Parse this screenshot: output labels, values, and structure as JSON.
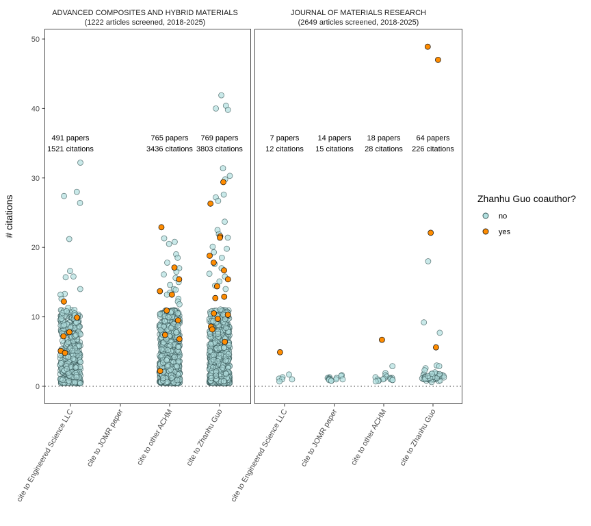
{
  "chart_data": {
    "type": "scatter",
    "subtype": "jitter-strip",
    "ylabel": "# citations",
    "xlabel": "",
    "ylim": [
      -2.5,
      51
    ],
    "yticks": [
      0,
      10,
      20,
      30,
      40,
      50
    ],
    "reference_line": {
      "y": 0,
      "style": "dotted"
    },
    "categories": [
      "cite to Engineered Science LLC",
      "cite to JOMR paper",
      "cite to other ACHM",
      "cite to Zhanhu Guo"
    ],
    "legend": {
      "title": "Zhanhu Guo coauthor?",
      "position": "right",
      "entries": [
        {
          "label": "no",
          "color": "#b2dfdf"
        },
        {
          "label": "yes",
          "color": "#ff8c00"
        }
      ]
    },
    "panels": [
      {
        "title": "ADVANCED COMPOSITES AND HYBRID MATERIALS",
        "subtitle": "(1222 articles screened, 2018-2025)",
        "annotations": [
          {
            "category": "cite to Engineered Science LLC",
            "papers": "491 papers",
            "citations": "1521 citations"
          },
          {
            "category": "cite to JOMR paper",
            "papers": "",
            "citations": ""
          },
          {
            "category": "cite to other ACHM",
            "papers": "765 papers",
            "citations": "3436 citations"
          },
          {
            "category": "cite to Zhanhu Guo",
            "papers": "769 papers",
            "citations": "3803 citations"
          }
        ],
        "groups": [
          {
            "category": "cite to Engineered Science LLC",
            "n": 491,
            "total": 1521,
            "outliers_no": [
              32.2,
              28,
              27.4,
              26.4,
              21.2,
              16.6,
              15.8,
              15.7,
              14,
              13.3,
              13.2,
              12.6,
              11.3,
              11,
              10.8,
              10.5,
              10.2,
              9.7,
              9.2,
              8.8
            ],
            "outliers_yes": [
              12.2,
              9.9,
              7.8,
              7.2,
              5.1,
              4.8
            ]
          },
          {
            "category": "cite to JOMR paper",
            "n": 0,
            "total": 0,
            "outliers_no": [],
            "outliers_yes": []
          },
          {
            "category": "cite to other ACHM",
            "n": 765,
            "total": 3436,
            "outliers_no": [
              21.3,
              20.8,
              20.5,
              19,
              18.5,
              17.8,
              17,
              16.5,
              16.1,
              15.6,
              15,
              14.6,
              14,
              13.9,
              13.5,
              13.2,
              12.6,
              12.2,
              11.8
            ],
            "outliers_yes": [
              22.9,
              17.1,
              15.4,
              13.7,
              13.2,
              10.9,
              9.5,
              7.4,
              6.8,
              2.2
            ]
          },
          {
            "category": "cite to Zhanhu Guo",
            "n": 769,
            "total": 3803,
            "outliers_no": [
              41.9,
              40.4,
              40,
              39.8,
              31.4,
              30.3,
              29.8,
              27.6,
              27.2,
              26.7,
              23.7,
              22.5,
              21.9,
              21.4,
              20.1,
              19.8,
              19.3,
              18.5,
              17.6,
              17,
              16.2,
              15.8,
              15.1,
              14.5,
              14
            ],
            "outliers_yes": [
              29.4,
              26.3,
              21.6,
              21.4,
              18.8,
              17.8,
              16.7,
              15.4,
              14.4,
              12.9,
              12.7,
              10.5,
              10.3,
              9.7,
              8.6,
              8.2,
              6.4
            ]
          }
        ]
      },
      {
        "title": "JOURNAL OF MATERIALS RESEARCH",
        "subtitle": "(2649 articles screened, 2018-2025)",
        "annotations": [
          {
            "category": "cite to Engineered Science LLC",
            "papers": "7 papers",
            "citations": "12 citations"
          },
          {
            "category": "cite to JOMR paper",
            "papers": "14 papers",
            "citations": "15 citations"
          },
          {
            "category": "cite to other ACHM",
            "papers": "18 papers",
            "citations": "28 citations"
          },
          {
            "category": "cite to Zhanhu Guo",
            "papers": "64 papers",
            "citations": "226 citations"
          }
        ],
        "groups": [
          {
            "category": "cite to Engineered Science LLC",
            "n": 7,
            "total": 12,
            "points_no": [
              1.7,
              1.3,
              1.1,
              1.0,
              1.0,
              0.7
            ],
            "points_yes": [
              4.9
            ]
          },
          {
            "category": "cite to JOMR paper",
            "n": 14,
            "total": 15,
            "points_no": [
              1.6,
              1.5,
              1.3,
              1.2,
              1.2,
              1.1,
              1.1,
              1.0,
              1.0,
              1.0,
              1.0,
              0.9,
              0.8,
              0.8
            ],
            "points_yes": []
          },
          {
            "category": "cite to other ACHM",
            "n": 18,
            "total": 28,
            "points_no": [
              2.9,
              1.9,
              1.6,
              1.4,
              1.3,
              1.2,
              1.2,
              1.1,
              1.1,
              1.0,
              1.0,
              1.0,
              0.9,
              0.9,
              0.8,
              0.8,
              0.7
            ],
            "points_yes": [
              6.7
            ]
          },
          {
            "category": "cite to Zhanhu Guo",
            "n": 64,
            "total": 226,
            "points_no": [
              18,
              9.2,
              7.7,
              3.0,
              2.9,
              2.6,
              2.3,
              2.0,
              1.8
            ],
            "points_yes": [
              48.9,
              47,
              22.1,
              5.6
            ]
          }
        ]
      }
    ]
  }
}
